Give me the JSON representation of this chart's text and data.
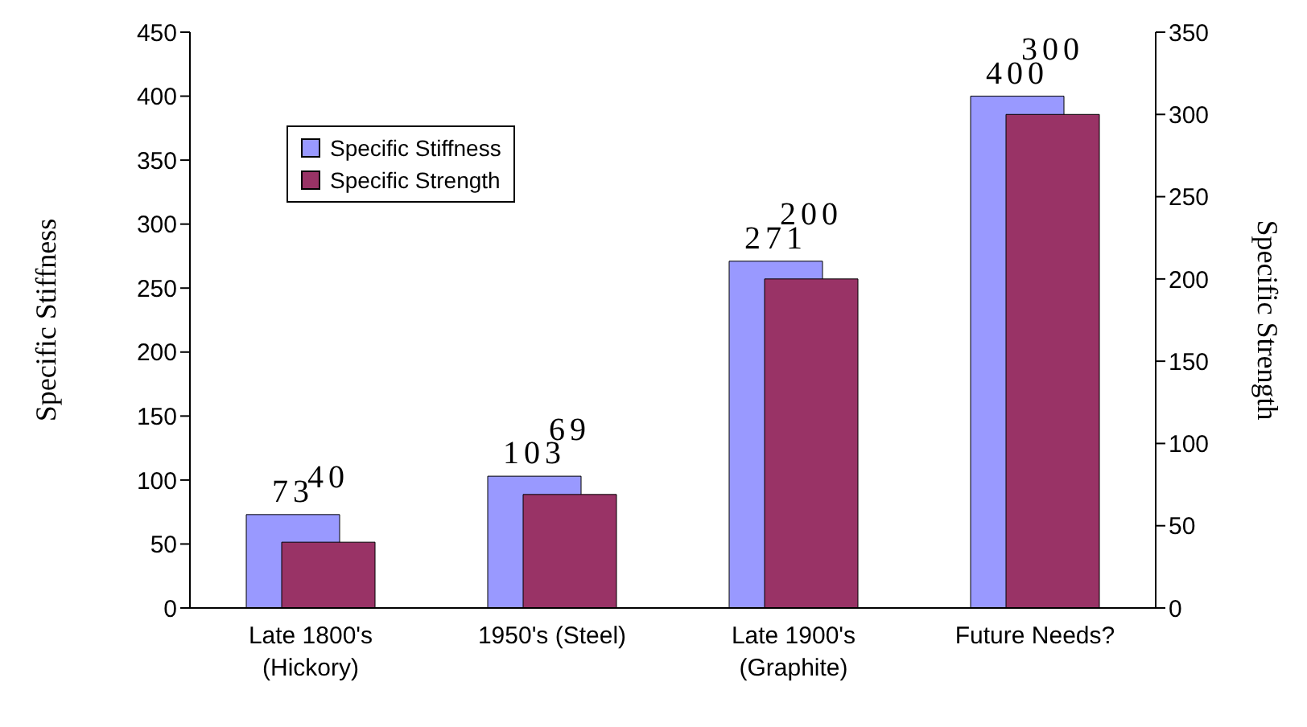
{
  "chart_data": {
    "type": "bar",
    "ylabel": "Specific Stiffness",
    "y2label": "Specific Strength",
    "categories": [
      "Late 1800's (Hickory)",
      "1950's    (Steel)",
      "Late 1900's (Graphite)",
      "Future Needs?"
    ],
    "series": [
      {
        "name": "Specific Stiffness",
        "color": "#9999ff",
        "values": [
          73,
          103,
          271,
          400
        ]
      },
      {
        "name": "Specific Strength",
        "color": "#993366",
        "values": [
          40,
          69,
          200,
          300
        ],
        "axis": "y2"
      }
    ],
    "ylim": [
      0,
      450
    ],
    "yticks": [
      0,
      50,
      100,
      150,
      200,
      250,
      300,
      350,
      400,
      450
    ],
    "y2lim": [
      0,
      350
    ],
    "y2ticks": [
      0,
      50,
      100,
      150,
      200,
      250,
      300,
      350
    ],
    "data_labels": true,
    "legend": "top left",
    "grid": false
  }
}
